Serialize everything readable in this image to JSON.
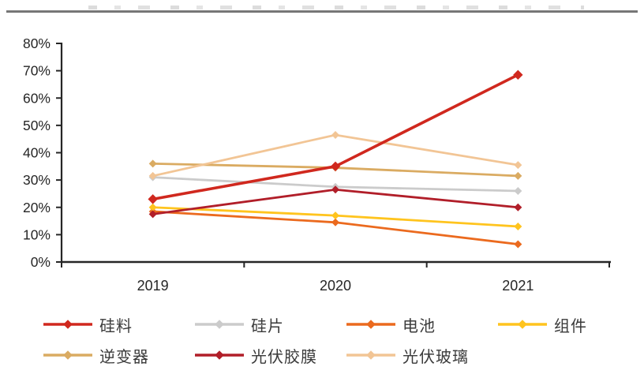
{
  "header": {
    "divider": "cropped-title-rule"
  },
  "chart_data": {
    "type": "line",
    "categories": [
      "2019",
      "2020",
      "2021"
    ],
    "series": [
      {
        "key": "polysilicon",
        "name": "硅料",
        "color": "#D0281E",
        "values": [
          23,
          35,
          68.5
        ],
        "on_top": true,
        "line_width": 3.6
      },
      {
        "key": "wafer",
        "name": "硅片",
        "color": "#CBCBCB",
        "values": [
          31,
          27.5,
          26
        ],
        "on_top": false,
        "line_width": 2.8
      },
      {
        "key": "cell",
        "name": "电池",
        "color": "#EB6A1E",
        "values": [
          18.5,
          14.5,
          6.5
        ],
        "on_top": false,
        "line_width": 2.8
      },
      {
        "key": "module",
        "name": "组件",
        "color": "#FFC41E",
        "values": [
          20,
          17,
          13
        ],
        "on_top": false,
        "line_width": 2.8
      },
      {
        "key": "inverter",
        "name": "逆变器",
        "color": "#DAAB62",
        "values": [
          36,
          34.5,
          31.5
        ],
        "on_top": false,
        "line_width": 2.8
      },
      {
        "key": "eva-film",
        "name": "光伏胶膜",
        "color": "#B11E29",
        "values": [
          17.5,
          26.5,
          20
        ],
        "on_top": false,
        "line_width": 2.8
      },
      {
        "key": "pv-glass",
        "name": "光伏玻璃",
        "color": "#F2C595",
        "values": [
          31.5,
          46.5,
          35.5
        ],
        "on_top": false,
        "line_width": 2.8
      }
    ],
    "ylim": [
      0,
      80
    ],
    "ytick_step": 10,
    "ytick_labels": [
      "0%",
      "10%",
      "20%",
      "30%",
      "40%",
      "50%",
      "60%",
      "70%",
      "80%"
    ],
    "marker": "diamond",
    "grid": false,
    "legend_position": "bottom",
    "legend_rows": [
      [
        0,
        1,
        2,
        3
      ],
      [
        4,
        5,
        6
      ]
    ],
    "axis_color": "#262626",
    "tick_label_color": "#262626",
    "legend_label_color": "#3a3a3a"
  }
}
